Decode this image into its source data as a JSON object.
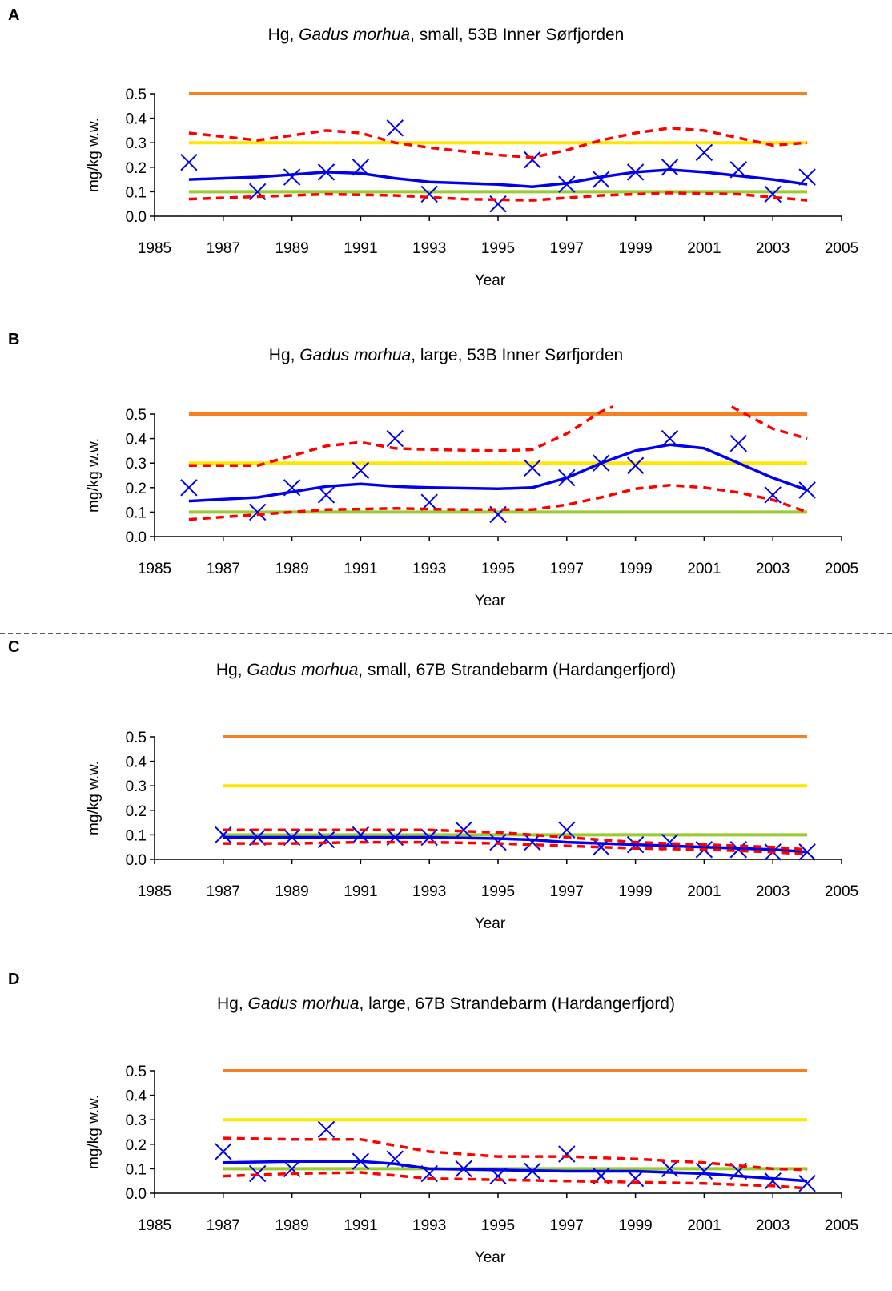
{
  "chart_data": [
    {
      "panel": "A",
      "type": "line",
      "title_prefix": "Hg, ",
      "title_species": "Gadus morhua",
      "title_suffix": ", small, 53B Inner Sørfjorden",
      "xlabel": "Year",
      "ylabel": "mg/kg w.w.",
      "xlim": [
        1985,
        2005
      ],
      "ylim": [
        0,
        0.5
      ],
      "xticks": [
        1985,
        1987,
        1989,
        1991,
        1993,
        1995,
        1997,
        1999,
        2001,
        2003,
        2005
      ],
      "yticks": [
        0.0,
        0.1,
        0.2,
        0.3,
        0.4,
        0.5
      ],
      "reference_lines": [
        {
          "y": 0.5,
          "color": "#f58220"
        },
        {
          "y": 0.3,
          "color": "#ffe600"
        },
        {
          "y": 0.1,
          "color": "#99cc33"
        }
      ],
      "series": [
        {
          "kind": "points",
          "marker": "x",
          "color": "#0000ee",
          "x": [
            1986,
            1988,
            1989,
            1990,
            1991,
            1992,
            1993,
            1995,
            1996,
            1997,
            1998,
            1999,
            2000,
            2001,
            2002,
            2003,
            2004
          ],
          "y": [
            0.22,
            0.1,
            0.16,
            0.18,
            0.2,
            0.36,
            0.09,
            0.05,
            0.23,
            0.13,
            0.15,
            0.18,
            0.2,
            0.26,
            0.19,
            0.09,
            0.16
          ]
        },
        {
          "kind": "trend",
          "color": "#0000ee",
          "x": [
            1986,
            1988,
            1990,
            1991,
            1992,
            1993,
            1995,
            1996,
            1997,
            1998,
            1999,
            2000,
            2001,
            2002,
            2003,
            2004
          ],
          "y": [
            0.15,
            0.16,
            0.18,
            0.175,
            0.155,
            0.14,
            0.13,
            0.12,
            0.135,
            0.16,
            0.18,
            0.19,
            0.18,
            0.165,
            0.15,
            0.13
          ]
        },
        {
          "kind": "upper",
          "color": "#ff0000",
          "x": [
            1986,
            1988,
            1990,
            1991,
            1992,
            1993,
            1995,
            1996,
            1997,
            1998,
            1999,
            2000,
            2001,
            2002,
            2003,
            2004
          ],
          "y": [
            0.34,
            0.31,
            0.35,
            0.34,
            0.3,
            0.28,
            0.25,
            0.24,
            0.27,
            0.31,
            0.34,
            0.36,
            0.35,
            0.32,
            0.29,
            0.3
          ]
        },
        {
          "kind": "lower",
          "color": "#ff0000",
          "x": [
            1986,
            1988,
            1990,
            1992,
            1994,
            1996,
            1998,
            2000,
            2002,
            2004
          ],
          "y": [
            0.07,
            0.08,
            0.09,
            0.085,
            0.07,
            0.065,
            0.085,
            0.095,
            0.09,
            0.065
          ]
        }
      ]
    },
    {
      "panel": "B",
      "type": "line",
      "title_prefix": "Hg, ",
      "title_species": "Gadus morhua",
      "title_suffix": ", large, 53B Inner Sørfjorden",
      "xlabel": "Year",
      "ylabel": "mg/kg w.w.",
      "xlim": [
        1985,
        2005
      ],
      "ylim": [
        0,
        0.5
      ],
      "xticks": [
        1985,
        1987,
        1989,
        1991,
        1993,
        1995,
        1997,
        1999,
        2001,
        2003,
        2005
      ],
      "yticks": [
        0.0,
        0.1,
        0.2,
        0.3,
        0.4,
        0.5
      ],
      "reference_lines": [
        {
          "y": 0.5,
          "color": "#f58220"
        },
        {
          "y": 0.3,
          "color": "#ffe600"
        },
        {
          "y": 0.1,
          "color": "#99cc33"
        }
      ],
      "series": [
        {
          "kind": "points",
          "marker": "x",
          "color": "#0000ee",
          "x": [
            1986,
            1988,
            1989,
            1990,
            1991,
            1992,
            1993,
            1995,
            1996,
            1997,
            1998,
            1999,
            2000,
            2002,
            2003,
            2004
          ],
          "y": [
            0.2,
            0.1,
            0.2,
            0.17,
            0.27,
            0.4,
            0.14,
            0.09,
            0.28,
            0.24,
            0.3,
            0.29,
            0.4,
            0.38,
            0.17,
            0.19
          ]
        },
        {
          "kind": "trend",
          "color": "#0000ee",
          "x": [
            1986,
            1988,
            1990,
            1991,
            1992,
            1993,
            1995,
            1996,
            1997,
            1998,
            1999,
            2000,
            2001,
            2002,
            2003,
            2004
          ],
          "y": [
            0.145,
            0.16,
            0.205,
            0.215,
            0.205,
            0.2,
            0.195,
            0.2,
            0.24,
            0.3,
            0.35,
            0.375,
            0.36,
            0.3,
            0.24,
            0.19
          ]
        },
        {
          "kind": "upper",
          "color": "#ff0000",
          "x": [
            1986,
            1988,
            1990,
            1991,
            1992,
            1993,
            1995,
            1996,
            1997,
            1998,
            1998.35
          ],
          "y": [
            0.29,
            0.29,
            0.37,
            0.385,
            0.36,
            0.355,
            0.35,
            0.355,
            0.42,
            0.51,
            0.53
          ]
        },
        {
          "kind": "upper",
          "color": "#ff0000",
          "x": [
            2001.8,
            2002.2,
            2003,
            2004
          ],
          "y": [
            0.53,
            0.5,
            0.44,
            0.4
          ]
        },
        {
          "kind": "lower",
          "color": "#ff0000",
          "x": [
            1986,
            1988,
            1990,
            1992,
            1994,
            1996,
            1997,
            1998,
            1999,
            2000,
            2001,
            2002,
            2003,
            2004
          ],
          "y": [
            0.07,
            0.09,
            0.11,
            0.115,
            0.11,
            0.11,
            0.13,
            0.16,
            0.195,
            0.21,
            0.2,
            0.18,
            0.15,
            0.1
          ]
        }
      ]
    },
    {
      "panel": "C",
      "type": "line",
      "title_prefix": "Hg, ",
      "title_species": "Gadus morhua",
      "title_suffix": ", small, 67B Strandebarm (Hardangerfjord)",
      "xlabel": "Year",
      "ylabel": "mg/kg w.w.",
      "xlim": [
        1985,
        2005
      ],
      "ylim": [
        0,
        0.5
      ],
      "xticks": [
        1985,
        1987,
        1989,
        1991,
        1993,
        1995,
        1997,
        1999,
        2001,
        2003,
        2005
      ],
      "yticks": [
        0.0,
        0.1,
        0.2,
        0.3,
        0.4,
        0.5
      ],
      "reference_lines": [
        {
          "y": 0.5,
          "color": "#f58220"
        },
        {
          "y": 0.3,
          "color": "#ffe600"
        },
        {
          "y": 0.1,
          "color": "#99cc33"
        }
      ],
      "series": [
        {
          "kind": "points",
          "marker": "x",
          "color": "#0000ee",
          "x": [
            1987,
            1988,
            1989,
            1990,
            1991,
            1992,
            1993,
            1994,
            1995,
            1996,
            1997,
            1998,
            1999,
            2000,
            2001,
            2002,
            2003,
            2004
          ],
          "y": [
            0.1,
            0.09,
            0.09,
            0.08,
            0.1,
            0.09,
            0.09,
            0.12,
            0.07,
            0.07,
            0.12,
            0.05,
            0.06,
            0.07,
            0.04,
            0.04,
            0.03,
            0.03
          ]
        },
        {
          "kind": "trend",
          "color": "#0000ee",
          "x": [
            1987,
            1989,
            1991,
            1993,
            1995,
            1996,
            1997,
            1999,
            2001,
            2003,
            2004
          ],
          "y": [
            0.09,
            0.09,
            0.09,
            0.09,
            0.085,
            0.08,
            0.07,
            0.06,
            0.05,
            0.04,
            0.03
          ]
        },
        {
          "kind": "upper",
          "color": "#ff0000",
          "x": [
            1987,
            1989,
            1991,
            1993,
            1995,
            1997,
            1999,
            2001,
            2003,
            2004
          ],
          "y": [
            0.12,
            0.12,
            0.12,
            0.12,
            0.11,
            0.09,
            0.07,
            0.06,
            0.05,
            0.04
          ]
        },
        {
          "kind": "lower",
          "color": "#ff0000",
          "x": [
            1987,
            1989,
            1991,
            1993,
            1995,
            1997,
            1999,
            2001,
            2003,
            2004
          ],
          "y": [
            0.065,
            0.065,
            0.07,
            0.07,
            0.065,
            0.055,
            0.045,
            0.04,
            0.03,
            0.02
          ]
        }
      ]
    },
    {
      "panel": "D",
      "type": "line",
      "title_prefix": "Hg, ",
      "title_species": "Gadus morhua",
      "title_suffix": ", large, 67B Strandebarm (Hardangerfjord)",
      "xlabel": "Year",
      "ylabel": "mg/kg w.w.",
      "xlim": [
        1985,
        2005
      ],
      "ylim": [
        0,
        0.5
      ],
      "xticks": [
        1985,
        1987,
        1989,
        1991,
        1993,
        1995,
        1997,
        1999,
        2001,
        2003,
        2005
      ],
      "yticks": [
        0.0,
        0.1,
        0.2,
        0.3,
        0.4,
        0.5
      ],
      "reference_lines": [
        {
          "y": 0.5,
          "color": "#f58220"
        },
        {
          "y": 0.3,
          "color": "#ffe600"
        },
        {
          "y": 0.1,
          "color": "#99cc33"
        }
      ],
      "series": [
        {
          "kind": "points",
          "marker": "x",
          "color": "#0000ee",
          "x": [
            1987,
            1988,
            1989,
            1990,
            1991,
            1992,
            1993,
            1994,
            1995,
            1996,
            1997,
            1998,
            1999,
            2000,
            2001,
            2002,
            2003,
            2004
          ],
          "y": [
            0.17,
            0.08,
            0.1,
            0.26,
            0.13,
            0.14,
            0.08,
            0.1,
            0.07,
            0.09,
            0.16,
            0.07,
            0.06,
            0.1,
            0.09,
            0.09,
            0.05,
            0.04
          ]
        },
        {
          "kind": "trend",
          "color": "#0000ee",
          "x": [
            1987,
            1989,
            1991,
            1992,
            1993,
            1995,
            1997,
            1999,
            2001,
            2003,
            2004
          ],
          "y": [
            0.125,
            0.13,
            0.13,
            0.12,
            0.1,
            0.095,
            0.09,
            0.09,
            0.08,
            0.06,
            0.05
          ]
        },
        {
          "kind": "upper",
          "color": "#ff0000",
          "x": [
            1987,
            1989,
            1991,
            1993,
            1995,
            1997,
            1999,
            2001,
            2003,
            2004
          ],
          "y": [
            0.225,
            0.22,
            0.22,
            0.17,
            0.15,
            0.15,
            0.14,
            0.125,
            0.1,
            0.095
          ]
        },
        {
          "kind": "lower",
          "color": "#ff0000",
          "x": [
            1987,
            1989,
            1991,
            1993,
            1995,
            1997,
            1999,
            2001,
            2003,
            2004
          ],
          "y": [
            0.07,
            0.08,
            0.085,
            0.06,
            0.055,
            0.05,
            0.045,
            0.04,
            0.03,
            0.02
          ]
        }
      ]
    }
  ]
}
